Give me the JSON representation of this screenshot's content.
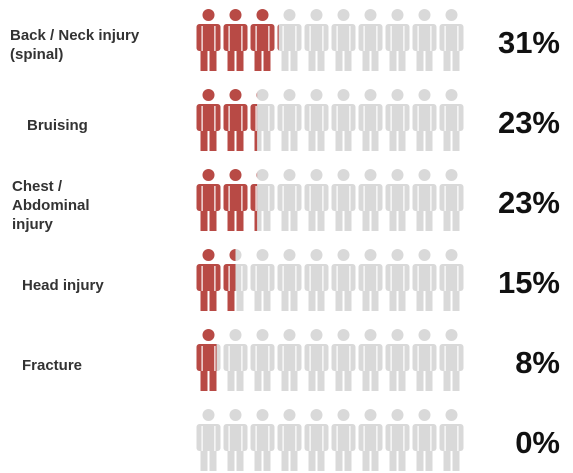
{
  "chart_data": {
    "type": "pictogram",
    "categories": [
      "Back / Neck injury (spinal)",
      "Bruising",
      "Chest / Abdominal injury",
      "Head injury",
      "Fracture",
      null
    ],
    "values": [
      31,
      23,
      23,
      15,
      8,
      0
    ],
    "value_labels": [
      "31%",
      "23%",
      "23%",
      "15%",
      "8%",
      "0%"
    ],
    "xlim": [
      0,
      100
    ],
    "color": "#b84a45",
    "empty_color": "#d9d9d9"
  }
}
